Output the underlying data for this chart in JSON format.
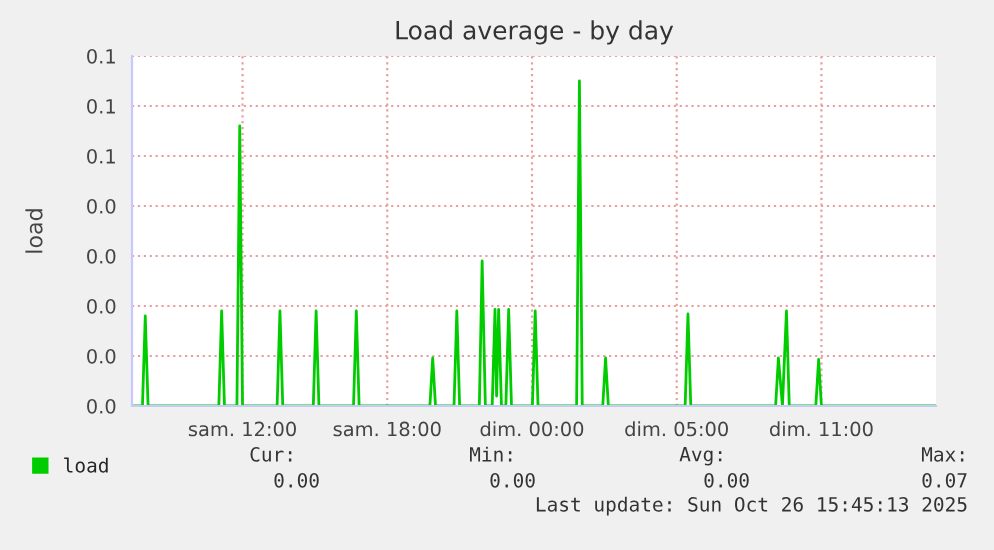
{
  "chart_data": {
    "type": "line",
    "title": "Load average - by day",
    "ylabel": "load",
    "xlim": [
      "2025-10-25T05:25",
      "2025-10-26T14:45"
    ],
    "ylim": [
      0,
      0.07
    ],
    "xticks": [
      {
        "value": "2025-10-25T10:00",
        "label": "sam. 12:00"
      },
      {
        "value": "2025-10-25T16:00",
        "label": "sam. 18:00"
      },
      {
        "value": "2025-10-25T22:00",
        "label": "dim. 00:00"
      },
      {
        "value": "2025-10-26T04:00",
        "label": "dim. 05:00"
      },
      {
        "value": "2025-10-26T10:00",
        "label": "dim. 11:00"
      }
    ],
    "yticks": [
      {
        "value": 0,
        "label": "0.0"
      },
      {
        "value": 0.01,
        "label": "0.0"
      },
      {
        "value": 0.02,
        "label": "0.0"
      },
      {
        "value": 0.03,
        "label": "0.0"
      },
      {
        "value": 0.04,
        "label": "0.0"
      },
      {
        "value": 0.05,
        "label": "0.1"
      },
      {
        "value": 0.06,
        "label": "0.1"
      },
      {
        "value": 0.07,
        "label": "0.1"
      }
    ],
    "grid": true,
    "legend": "bottom left",
    "marker": "none",
    "line_style": "solid",
    "series": [
      {
        "name": "load",
        "color": "#00cc00",
        "x": [
          "2025-10-25T05:25",
          "2025-10-25T05:51",
          "2025-10-25T05:58",
          "2025-10-25T06:05",
          "2025-10-25T09:01",
          "2025-10-25T09:08",
          "2025-10-25T09:15",
          "2025-10-25T09:46",
          "2025-10-25T09:53",
          "2025-10-25T10:00",
          "2025-10-25T11:26",
          "2025-10-25T11:33",
          "2025-10-25T11:40",
          "2025-10-25T12:56",
          "2025-10-25T13:03",
          "2025-10-25T13:10",
          "2025-10-25T14:36",
          "2025-10-25T14:43",
          "2025-10-25T14:50",
          "2025-10-25T17:46",
          "2025-10-25T17:53",
          "2025-10-25T18:00",
          "2025-10-25T18:46",
          "2025-10-25T18:53",
          "2025-10-25T19:00",
          "2025-10-25T19:49",
          "2025-10-25T19:56",
          "2025-10-25T20:04",
          "2025-10-25T20:21",
          "2025-10-25T20:28",
          "2025-10-25T20:32",
          "2025-10-25T20:37",
          "2025-10-25T20:44",
          "2025-10-25T20:55",
          "2025-10-25T21:02",
          "2025-10-25T21:09",
          "2025-10-25T22:01",
          "2025-10-25T22:08",
          "2025-10-25T22:15",
          "2025-10-25T23:51",
          "2025-10-25T23:58",
          "2025-10-26T00:05",
          "2025-10-26T00:56",
          "2025-10-26T01:03",
          "2025-10-26T01:10",
          "2025-10-26T04:21",
          "2025-10-26T04:28",
          "2025-10-26T04:35",
          "2025-10-26T08:06",
          "2025-10-26T08:13",
          "2025-10-26T08:23",
          "2025-10-26T08:33",
          "2025-10-26T08:40",
          "2025-10-26T09:46",
          "2025-10-26T09:53",
          "2025-10-26T10:00",
          "2025-10-26T14:45"
        ],
        "values": [
          0,
          0,
          0.018,
          0,
          0,
          0.019,
          0,
          0,
          0.056,
          0,
          0,
          0.019,
          0,
          0,
          0.019,
          0,
          0,
          0.019,
          0,
          0,
          0.0096,
          0,
          0,
          0.019,
          0,
          0,
          0.029,
          0,
          0,
          0.0193,
          0.002,
          0.0193,
          0,
          0,
          0.0193,
          0,
          0,
          0.019,
          0,
          0,
          0.065,
          0,
          0,
          0.0096,
          0,
          0,
          0.0184,
          0,
          0,
          0.0096,
          0,
          0.019,
          0,
          0,
          0.0093,
          0,
          0
        ]
      }
    ],
    "annotations": [
      "Cur:",
      "0.00",
      "Min:",
      "0.00",
      "Avg:",
      "0.00",
      "Max:",
      "0.07",
      "Last update: Sun Oct 26 15:45:13 2025"
    ]
  }
}
